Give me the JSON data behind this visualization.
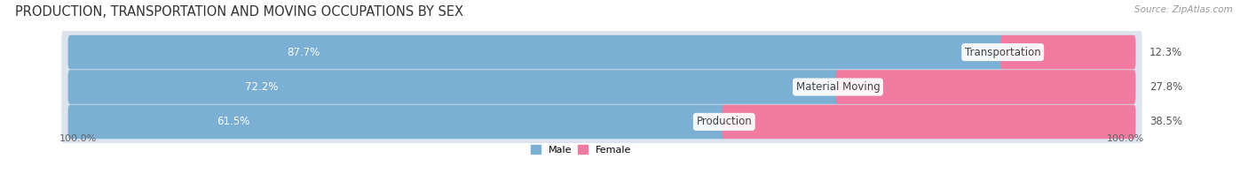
{
  "title": "PRODUCTION, TRANSPORTATION AND MOVING OCCUPATIONS BY SEX",
  "source": "Source: ZipAtlas.com",
  "categories": [
    "Transportation",
    "Material Moving",
    "Production"
  ],
  "male_values": [
    87.7,
    72.2,
    61.5
  ],
  "female_values": [
    12.3,
    27.8,
    38.5
  ],
  "male_color": "#7bafd4",
  "female_color": "#f07aa0",
  "bar_bg_color": "#dde4ed",
  "title_fontsize": 10.5,
  "source_fontsize": 7.5,
  "bar_label_fontsize": 8.5,
  "category_fontsize": 8.5,
  "axis_label_fontsize": 8,
  "background_color": "#ffffff",
  "legend_male_color": "#7bafd4",
  "legend_female_color": "#f07aa0",
  "xlim_left": -5,
  "xlim_right": 105,
  "bar_total": 100
}
